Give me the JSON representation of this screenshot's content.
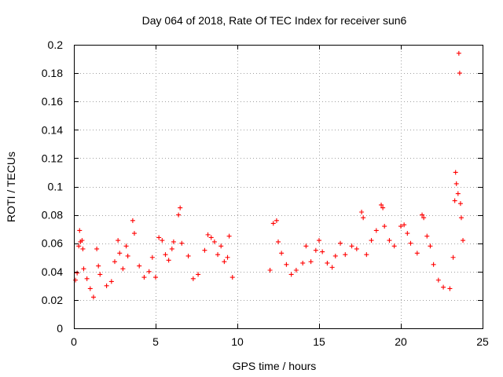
{
  "chart_data": {
    "type": "scatter",
    "title": "Day 064 of 2018, Rate Of TEC Index for receiver sun6",
    "xlabel": "GPS time / hours",
    "ylabel": "ROTI / TECUs",
    "xlim": [
      0,
      25
    ],
    "ylim": [
      0,
      0.2
    ],
    "x_ticks": [
      0,
      5,
      10,
      15,
      20,
      25
    ],
    "x_tick_labels": [
      "0",
      "5",
      "10",
      "15",
      "20",
      "25"
    ],
    "y_ticks": [
      0,
      0.02,
      0.04,
      0.06,
      0.08,
      0.1,
      0.12,
      0.14,
      0.16,
      0.18,
      0.2
    ],
    "y_tick_labels": [
      "0",
      "0.02",
      "0.04",
      "0.06",
      "0.08",
      "0.1",
      "0.12",
      "0.14",
      "0.16",
      "0.18",
      "0.2"
    ],
    "grid": true,
    "marker": "+",
    "color": "#ff0000",
    "series": [
      {
        "name": "ROTI",
        "points": [
          [
            0.1,
            0.034
          ],
          [
            0.2,
            0.039
          ],
          [
            0.3,
            0.058
          ],
          [
            0.35,
            0.069
          ],
          [
            0.4,
            0.061
          ],
          [
            0.5,
            0.062
          ],
          [
            0.55,
            0.056
          ],
          [
            0.6,
            0.042
          ],
          [
            0.8,
            0.035
          ],
          [
            1.0,
            0.028
          ],
          [
            1.2,
            0.022
          ],
          [
            1.4,
            0.056
          ],
          [
            1.5,
            0.044
          ],
          [
            1.6,
            0.038
          ],
          [
            2.0,
            0.03
          ],
          [
            2.3,
            0.033
          ],
          [
            2.5,
            0.047
          ],
          [
            2.7,
            0.062
          ],
          [
            2.8,
            0.053
          ],
          [
            3.0,
            0.042
          ],
          [
            3.2,
            0.058
          ],
          [
            3.3,
            0.051
          ],
          [
            3.6,
            0.076
          ],
          [
            3.7,
            0.067
          ],
          [
            4.0,
            0.044
          ],
          [
            4.3,
            0.036
          ],
          [
            4.6,
            0.04
          ],
          [
            4.8,
            0.05
          ],
          [
            5.0,
            0.036
          ],
          [
            5.2,
            0.064
          ],
          [
            5.4,
            0.062
          ],
          [
            5.6,
            0.052
          ],
          [
            5.8,
            0.048
          ],
          [
            6.0,
            0.056
          ],
          [
            6.1,
            0.061
          ],
          [
            6.4,
            0.08
          ],
          [
            6.5,
            0.085
          ],
          [
            6.6,
            0.06
          ],
          [
            7.0,
            0.051
          ],
          [
            7.3,
            0.035
          ],
          [
            7.6,
            0.038
          ],
          [
            8.0,
            0.055
          ],
          [
            8.2,
            0.066
          ],
          [
            8.4,
            0.064
          ],
          [
            8.6,
            0.061
          ],
          [
            8.8,
            0.052
          ],
          [
            9.0,
            0.058
          ],
          [
            9.2,
            0.047
          ],
          [
            9.4,
            0.05
          ],
          [
            9.5,
            0.065
          ],
          [
            9.7,
            0.036
          ],
          [
            12.0,
            0.041
          ],
          [
            12.2,
            0.074
          ],
          [
            12.4,
            0.076
          ],
          [
            12.5,
            0.061
          ],
          [
            12.7,
            0.053
          ],
          [
            13.0,
            0.045
          ],
          [
            13.3,
            0.038
          ],
          [
            13.6,
            0.041
          ],
          [
            14.0,
            0.046
          ],
          [
            14.2,
            0.058
          ],
          [
            14.5,
            0.047
          ],
          [
            14.8,
            0.055
          ],
          [
            15.0,
            0.062
          ],
          [
            15.2,
            0.054
          ],
          [
            15.5,
            0.046
          ],
          [
            15.8,
            0.043
          ],
          [
            16.0,
            0.051
          ],
          [
            16.3,
            0.06
          ],
          [
            16.6,
            0.052
          ],
          [
            17.0,
            0.058
          ],
          [
            17.3,
            0.056
          ],
          [
            17.6,
            0.082
          ],
          [
            17.7,
            0.078
          ],
          [
            17.9,
            0.052
          ],
          [
            18.2,
            0.062
          ],
          [
            18.5,
            0.069
          ],
          [
            18.8,
            0.087
          ],
          [
            18.9,
            0.085
          ],
          [
            19.0,
            0.072
          ],
          [
            19.3,
            0.062
          ],
          [
            19.6,
            0.058
          ],
          [
            20.0,
            0.072
          ],
          [
            20.2,
            0.073
          ],
          [
            20.4,
            0.067
          ],
          [
            20.6,
            0.06
          ],
          [
            21.0,
            0.053
          ],
          [
            21.3,
            0.08
          ],
          [
            21.4,
            0.078
          ],
          [
            21.6,
            0.065
          ],
          [
            21.8,
            0.058
          ],
          [
            22.0,
            0.045
          ],
          [
            22.3,
            0.034
          ],
          [
            22.6,
            0.029
          ],
          [
            23.0,
            0.028
          ],
          [
            23.2,
            0.05
          ],
          [
            23.3,
            0.09
          ],
          [
            23.35,
            0.11
          ],
          [
            23.4,
            0.102
          ],
          [
            23.5,
            0.095
          ],
          [
            23.55,
            0.194
          ],
          [
            23.6,
            0.18
          ],
          [
            23.65,
            0.088
          ],
          [
            23.7,
            0.078
          ],
          [
            23.8,
            0.062
          ]
        ]
      }
    ]
  }
}
